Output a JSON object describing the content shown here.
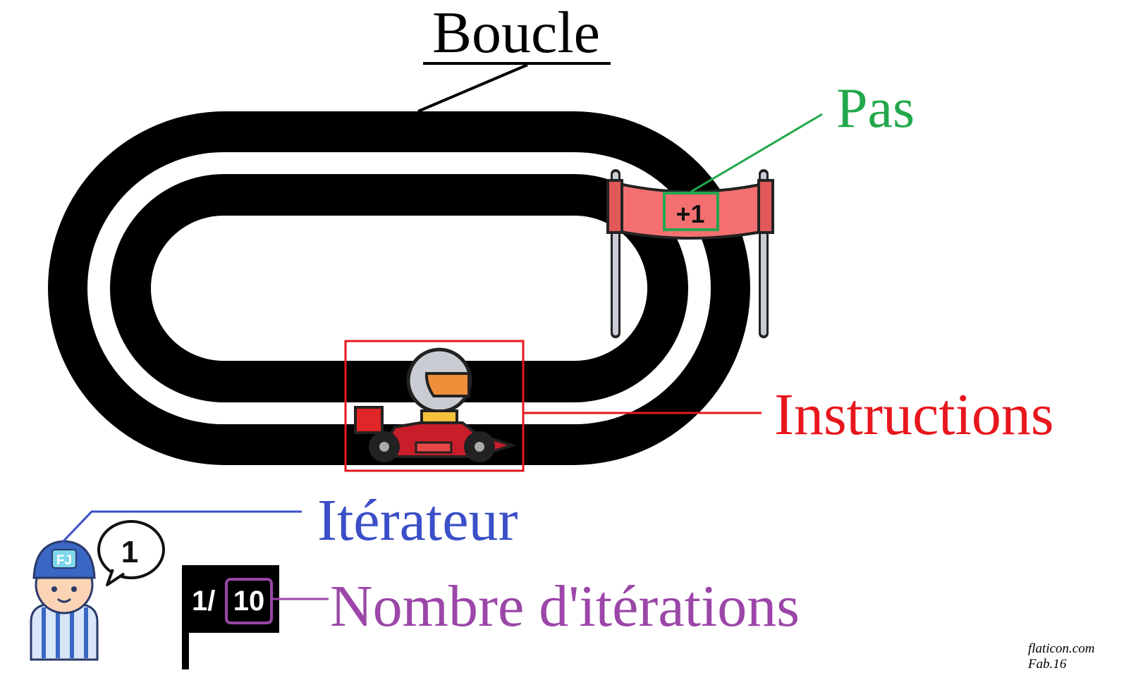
{
  "title": "Boucle",
  "labels": {
    "step": "Pas",
    "instructions": "Instructions",
    "iterator": "Itérateur",
    "iteration_count": "Nombre d'itérations"
  },
  "banner": {
    "text": "+1"
  },
  "referee": {
    "cap_text": "FJ",
    "bubble_text": "1"
  },
  "flag": {
    "current": "1/",
    "total": "10"
  },
  "credits": {
    "line1": "flaticon.com",
    "line2": "Fab.16"
  },
  "colors": {
    "track": "#000000",
    "step": "#22a84a",
    "instructions": "#e8161d",
    "iterator": "#3b4fc8",
    "iteration_count": "#9b46a8",
    "banner": "#f47070"
  },
  "icons": [
    "race-track-icon",
    "finish-banner-icon",
    "kart-driver-icon",
    "referee-icon",
    "speech-bubble-icon",
    "lap-flag-icon"
  ]
}
